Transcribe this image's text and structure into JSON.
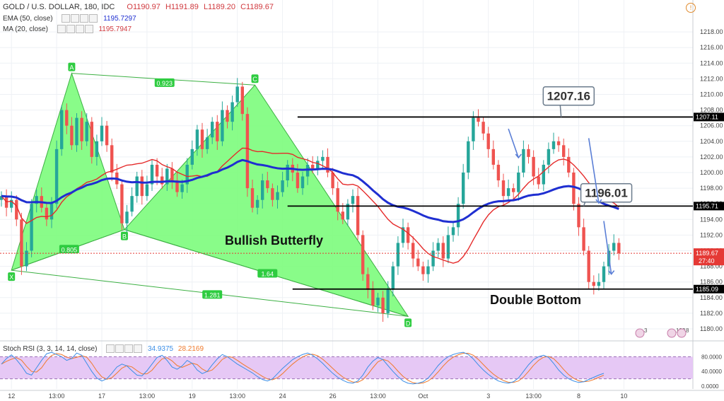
{
  "header": {
    "title": "GOLD / U.S. DOLLAR, 180, IDC",
    "open": "O1190.97",
    "high": "H1191.89",
    "low": "L1189.20",
    "close": "C1189.67"
  },
  "indicators": {
    "ema_label": "EMA (50, close)",
    "ema_value": "1195.7297",
    "ma_label": "MA (20, close)",
    "ma_value": "1195.7947",
    "stoch_label": "Stoch RSI (3, 3, 14, 14, close)",
    "stoch_k": "34.9375",
    "stoch_d": "28.2169"
  },
  "colors": {
    "bull": "#26a69a",
    "bear": "#ef5350",
    "ema": "#1f2fd1",
    "ma": "#e52a2a",
    "pattern_fill": "#7CFC7C",
    "pattern_line": "#3cb043",
    "stoch_k": "#3b8ee6",
    "stoch_d": "#f07a2c",
    "stoch_bg": "#e6c8f5"
  },
  "chart_data": {
    "type": "candlestick",
    "ylim": [
      1179,
      1219
    ],
    "y_ticks": [
      "1218.00",
      "1216.00",
      "1214.00",
      "1212.00",
      "1210.00",
      "1208.00",
      "1206.00",
      "1204.00",
      "1202.00",
      "1200.00",
      "1198.00",
      "1196.00",
      "1194.00",
      "1192.00",
      "1190.00",
      "1188.00",
      "1186.00",
      "1184.00",
      "1182.00",
      "1180.00"
    ],
    "x_ticks": [
      "12",
      "13:00",
      "17",
      "13:00",
      "19",
      "13:00",
      "24",
      "26",
      "13:00",
      "Oct",
      "3",
      "13:00",
      "8",
      "10"
    ],
    "x_tick_positions": [
      2,
      11,
      20,
      29,
      38,
      47,
      56,
      66,
      75,
      84,
      97,
      106,
      115,
      124
    ],
    "closes": [
      1197,
      1195.5,
      1196.5,
      1194,
      1188,
      1190,
      1196,
      1197,
      1195.5,
      1194,
      1196,
      1203,
      1208,
      1206,
      1203.5,
      1207,
      1204,
      1206.5,
      1202,
      1204,
      1206,
      1203.5,
      1200,
      1198.5,
      1193.5,
      1195,
      1197,
      1199.5,
      1197,
      1198.5,
      1201,
      1199.5,
      1198.5,
      1200.5,
      1199,
      1197.5,
      1198.5,
      1201,
      1203,
      1205.5,
      1203,
      1204.5,
      1206.5,
      1204,
      1208,
      1206.5,
      1209,
      1211,
      1207.5,
      1198,
      1195.5,
      1196.5,
      1199,
      1198,
      1196.5,
      1197.5,
      1199,
      1201,
      1200,
      1198,
      1199.5,
      1201,
      1200.5,
      1201.5,
      1202,
      1200,
      1198,
      1195,
      1194,
      1196,
      1197,
      1192,
      1187,
      1185,
      1183,
      1184,
      1182,
      1185,
      1188,
      1191,
      1193,
      1191,
      1189,
      1188,
      1187,
      1188,
      1190,
      1191,
      1189,
      1192,
      1193,
      1196,
      1200,
      1204,
      1207,
      1206.5,
      1205,
      1203,
      1201,
      1199,
      1197,
      1198,
      1197.5,
      1200,
      1203,
      1202,
      1199.5,
      1198.5,
      1201,
      1203,
      1204,
      1203.5,
      1202,
      1200,
      1196,
      1193,
      1190,
      1186,
      1185.5,
      1186,
      1188,
      1190,
      1191,
      1189.67
    ],
    "last_price": "1189.67",
    "countdown": "27:40",
    "horizontal_levels": [
      {
        "price": 1207.11,
        "label": "1207.11",
        "x_start": 59
      },
      {
        "price": 1195.71,
        "label": "1195.71",
        "x_start": 57
      },
      {
        "price": 1185.09,
        "label": "1185.09",
        "x_start": 58
      }
    ],
    "callouts": [
      {
        "text": "1207.16",
        "x": 113,
        "price": 1209.8
      },
      {
        "text": "1196.01",
        "x": 120.5,
        "price": 1197.4
      }
    ],
    "pattern": {
      "name": "Bullish Butterfly",
      "points": [
        {
          "label": "X",
          "i": 2,
          "price": 1187.5
        },
        {
          "label": "A",
          "i": 14,
          "price": 1212.7
        },
        {
          "label": "B",
          "i": 24.5,
          "price": 1192.7
        },
        {
          "label": "C",
          "i": 50.5,
          "price": 1211.2
        },
        {
          "label": "D",
          "i": 81,
          "price": 1181.6
        }
      ],
      "ratios": [
        {
          "text": "0.923",
          "i": 32.5,
          "price": 1211.5
        },
        {
          "text": "0.805",
          "i": 13.5,
          "price": 1190.2
        },
        {
          "text": "1.64",
          "i": 53,
          "price": 1187.1
        },
        {
          "text": "1.281",
          "i": 42,
          "price": 1184.4
        }
      ]
    },
    "annotation": "Double Bottom",
    "stoch_ticks": [
      "80.0000",
      "40.0000",
      "0.0000"
    ],
    "stoch_k_values": [
      60,
      75,
      85,
      72,
      55,
      35,
      30,
      50,
      70,
      88,
      92,
      86,
      80,
      70,
      75,
      90,
      84,
      62,
      40,
      22,
      14,
      20,
      35,
      52,
      60,
      55,
      42,
      30,
      28,
      42,
      60,
      78,
      84,
      70,
      52,
      46,
      55,
      70,
      62,
      44,
      34,
      40,
      58,
      74,
      86,
      80,
      70,
      60,
      52,
      44,
      36,
      26,
      18,
      14,
      20,
      34,
      48,
      60,
      72,
      80,
      86,
      90,
      84,
      74,
      62,
      48,
      35,
      24,
      16,
      10,
      8,
      14,
      30,
      52,
      68,
      78,
      72,
      56,
      40,
      26,
      14,
      8,
      6,
      8,
      12,
      22,
      38,
      56,
      70,
      80,
      86,
      90,
      92,
      86,
      74,
      58,
      44,
      32,
      22,
      14,
      10,
      8,
      12,
      22,
      40,
      58,
      72,
      80,
      84,
      78,
      62,
      44,
      30,
      20,
      14,
      10,
      12,
      18,
      24,
      30,
      34.9
    ]
  },
  "events": {
    "badge1": "3",
    "badge2": "133",
    "badge3": "8"
  }
}
